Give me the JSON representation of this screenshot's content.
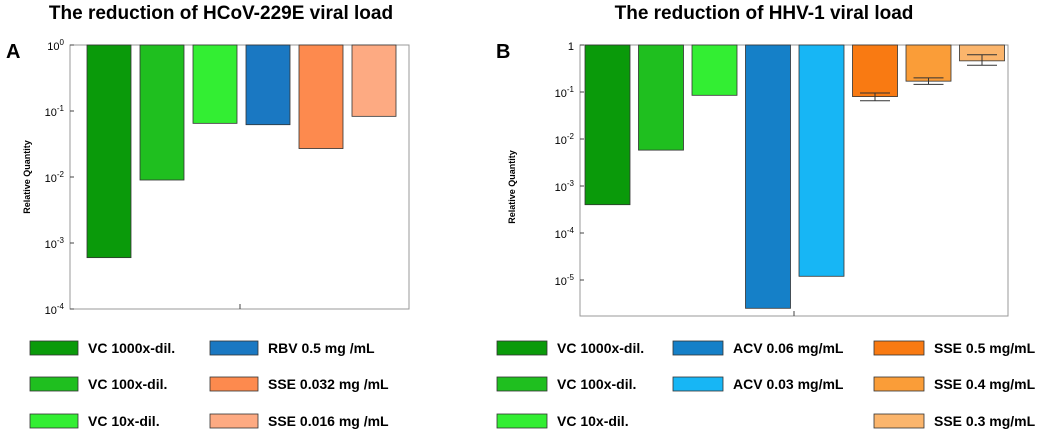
{
  "chart_data": [
    {
      "panel": "A",
      "type": "bar",
      "scale": "log",
      "title": "The reduction of HCoV-229E viral load",
      "ylabel": "Relative Quantity",
      "ylim": [
        0.0001,
        1
      ],
      "y_ticks": [
        {
          "base": "10",
          "exp": "0"
        },
        {
          "base": "10",
          "exp": "-1"
        },
        {
          "base": "10",
          "exp": "-2"
        },
        {
          "base": "10",
          "exp": "-3"
        },
        {
          "base": "10",
          "exp": "-4"
        }
      ],
      "series": [
        {
          "name": "VC 1000x-dil.",
          "value": 0.0006,
          "color": "#0a9a0a"
        },
        {
          "name": "VC 100x-dil.",
          "value": 0.009,
          "color": "#1fbf1f"
        },
        {
          "name": "VC 10x-dil.",
          "value": 0.065,
          "color": "#33ee33"
        },
        {
          "name": "RBV 0.5 mg /mL",
          "value": 0.062,
          "color": "#1a78c2"
        },
        {
          "name": "SSE 0.032 mg /mL",
          "value": 0.027,
          "color": "#fd8a4e"
        },
        {
          "name": "SSE 0.016 mg /mL",
          "value": 0.083,
          "color": "#fdaa82"
        }
      ]
    },
    {
      "panel": "B",
      "type": "bar",
      "scale": "log",
      "title": "The reduction of HHV-1 viral load",
      "ylabel": "Relative Quantity",
      "ylim": [
        1e-06,
        1
      ],
      "y_ticks": [
        {
          "base": "1",
          "exp": ""
        },
        {
          "base": "10",
          "exp": "-1"
        },
        {
          "base": "10",
          "exp": "-2"
        },
        {
          "base": "10",
          "exp": "-3"
        },
        {
          "base": "10",
          "exp": "-4"
        },
        {
          "base": "10",
          "exp": "-5"
        }
      ],
      "series": [
        {
          "name": "VC 1000x-dil.",
          "value": 0.0004,
          "color": "#0a9a0a"
        },
        {
          "name": "VC 100x-dil.",
          "value": 0.0058,
          "color": "#1fbf1f"
        },
        {
          "name": "VC 10x-dil.",
          "value": 0.085,
          "color": "#33ee33"
        },
        {
          "name": "ACV 0.06 mg/mL",
          "value": 2.5e-06,
          "color": "#1580c8"
        },
        {
          "name": "ACV 0.03 mg/mL",
          "value": 1.2e-05,
          "color": "#17b6f5"
        },
        {
          "name": "SSE 0.5 mg/mL",
          "value": 0.08,
          "color": "#f97a12",
          "err": [
            0.065,
            0.095
          ]
        },
        {
          "name": "SSE 0.4 mg/mL",
          "value": 0.17,
          "color": "#fa9d38",
          "err": [
            0.145,
            0.2
          ]
        },
        {
          "name": "SSE 0.3 mg/mL",
          "value": 0.46,
          "color": "#fbb56c",
          "err": [
            0.37,
            0.62
          ]
        }
      ]
    }
  ]
}
